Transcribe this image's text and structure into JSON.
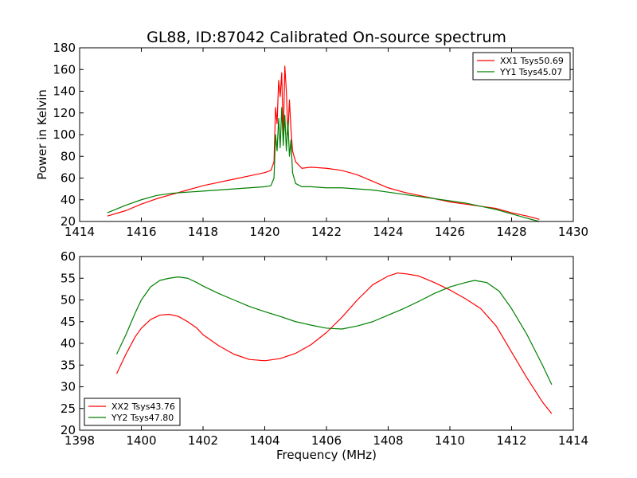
{
  "chart_data": [
    {
      "type": "line",
      "title": "GL88, ID:87042 Calibrated On-source spectrum",
      "xlabel": "",
      "ylabel": "Power in Kelvin",
      "xlim": [
        1414,
        1430
      ],
      "ylim": [
        20,
        180
      ],
      "xticks": [
        "1414",
        "1416",
        "1418",
        "1420",
        "1422",
        "1424",
        "1426",
        "1428",
        "1430"
      ],
      "yticks": [
        "20",
        "40",
        "60",
        "80",
        "100",
        "120",
        "140",
        "160",
        "180"
      ],
      "grid": false,
      "legend_position": "top-right",
      "series": [
        {
          "name": "XX1 Tsys50.69",
          "color": "#ff0000",
          "x": [
            1414.9,
            1415.5,
            1416.0,
            1416.5,
            1417.0,
            1417.5,
            1418.0,
            1418.5,
            1419.0,
            1419.5,
            1420.0,
            1420.2,
            1420.3,
            1420.35,
            1420.4,
            1420.45,
            1420.5,
            1420.55,
            1420.6,
            1420.65,
            1420.7,
            1420.75,
            1420.8,
            1420.85,
            1420.9,
            1421.0,
            1421.2,
            1421.5,
            1422.0,
            1422.5,
            1423.0,
            1423.5,
            1424.0,
            1424.5,
            1425.0,
            1425.5,
            1426.0,
            1426.5,
            1427.0,
            1427.5,
            1428.0,
            1428.5,
            1428.9
          ],
          "y": [
            25,
            30,
            36,
            41,
            45,
            49,
            53,
            56,
            59,
            62,
            65,
            67,
            75,
            125,
            110,
            150,
            135,
            157,
            95,
            163,
            140,
            100,
            132,
            105,
            85,
            75,
            69,
            70,
            69,
            67,
            63,
            57,
            51,
            47,
            44,
            41,
            38,
            36,
            34,
            32,
            28,
            25,
            22
          ]
        },
        {
          "name": "YY1 Tsys45.07",
          "color": "#008000",
          "x": [
            1414.9,
            1415.5,
            1416.0,
            1416.5,
            1417.0,
            1417.5,
            1418.0,
            1418.5,
            1419.0,
            1419.5,
            1420.0,
            1420.2,
            1420.3,
            1420.35,
            1420.4,
            1420.45,
            1420.5,
            1420.55,
            1420.6,
            1420.65,
            1420.7,
            1420.75,
            1420.8,
            1420.85,
            1420.9,
            1421.0,
            1421.2,
            1421.5,
            1422.0,
            1422.5,
            1423.0,
            1423.5,
            1424.0,
            1424.5,
            1425.0,
            1425.5,
            1426.0,
            1426.5,
            1427.0,
            1427.5,
            1428.0,
            1428.5,
            1428.9
          ],
          "y": [
            28,
            35,
            40,
            44,
            46,
            47,
            48,
            49,
            50,
            51,
            52,
            53,
            60,
            100,
            85,
            115,
            88,
            125,
            90,
            118,
            85,
            112,
            80,
            95,
            65,
            55,
            52,
            52,
            51,
            51,
            50,
            49,
            47,
            45,
            43,
            41,
            39,
            37,
            34,
            31,
            27,
            23,
            20
          ]
        }
      ]
    },
    {
      "type": "line",
      "title": "",
      "xlabel": "Frequency (MHz)",
      "ylabel": "",
      "xlim": [
        1398,
        1414
      ],
      "ylim": [
        20,
        60
      ],
      "xticks": [
        "1398",
        "1400",
        "1402",
        "1404",
        "1406",
        "1408",
        "1410",
        "1412",
        "1414"
      ],
      "yticks": [
        "20",
        "25",
        "30",
        "35",
        "40",
        "45",
        "50",
        "55",
        "60"
      ],
      "grid": false,
      "legend_position": "bottom-left",
      "series": [
        {
          "name": "XX2 Tsys43.76",
          "color": "#ff0000",
          "x": [
            1399.2,
            1399.5,
            1399.8,
            1400.0,
            1400.3,
            1400.6,
            1400.9,
            1401.2,
            1401.5,
            1401.8,
            1402.0,
            1402.5,
            1403.0,
            1403.5,
            1404.0,
            1404.5,
            1405.0,
            1405.5,
            1406.0,
            1406.5,
            1407.0,
            1407.5,
            1408.0,
            1408.3,
            1408.6,
            1409.0,
            1409.5,
            1410.0,
            1410.5,
            1411.0,
            1411.5,
            1412.0,
            1412.5,
            1413.0,
            1413.3
          ],
          "y": [
            33,
            37.5,
            41.5,
            43.5,
            45.5,
            46.5,
            46.7,
            46.2,
            45,
            43.5,
            42,
            39.5,
            37.5,
            36.3,
            36,
            36.5,
            37.7,
            39.7,
            42.5,
            46,
            50,
            53.5,
            55.5,
            56.2,
            56,
            55.5,
            54,
            52.3,
            50.3,
            48,
            44,
            38,
            32,
            26.5,
            23.8
          ]
        },
        {
          "name": "YY2 Tsys47.80",
          "color": "#008000",
          "x": [
            1399.2,
            1399.5,
            1399.8,
            1400.0,
            1400.3,
            1400.6,
            1400.9,
            1401.2,
            1401.5,
            1401.8,
            1402.0,
            1402.5,
            1403.0,
            1403.5,
            1404.0,
            1404.5,
            1405.0,
            1405.5,
            1406.0,
            1406.5,
            1407.0,
            1407.5,
            1408.0,
            1408.5,
            1409.0,
            1409.5,
            1410.0,
            1410.5,
            1410.8,
            1411.2,
            1411.6,
            1412.0,
            1412.5,
            1413.0,
            1413.3
          ],
          "y": [
            37.5,
            42,
            47,
            50,
            53,
            54.5,
            55,
            55.3,
            55,
            54,
            53.2,
            51.5,
            50,
            48.5,
            47.3,
            46.2,
            45,
            44.2,
            43.5,
            43.3,
            44,
            45,
            46.5,
            48,
            49.7,
            51.5,
            53,
            54,
            54.5,
            54,
            52,
            48,
            42,
            35,
            30.5
          ]
        }
      ]
    }
  ]
}
